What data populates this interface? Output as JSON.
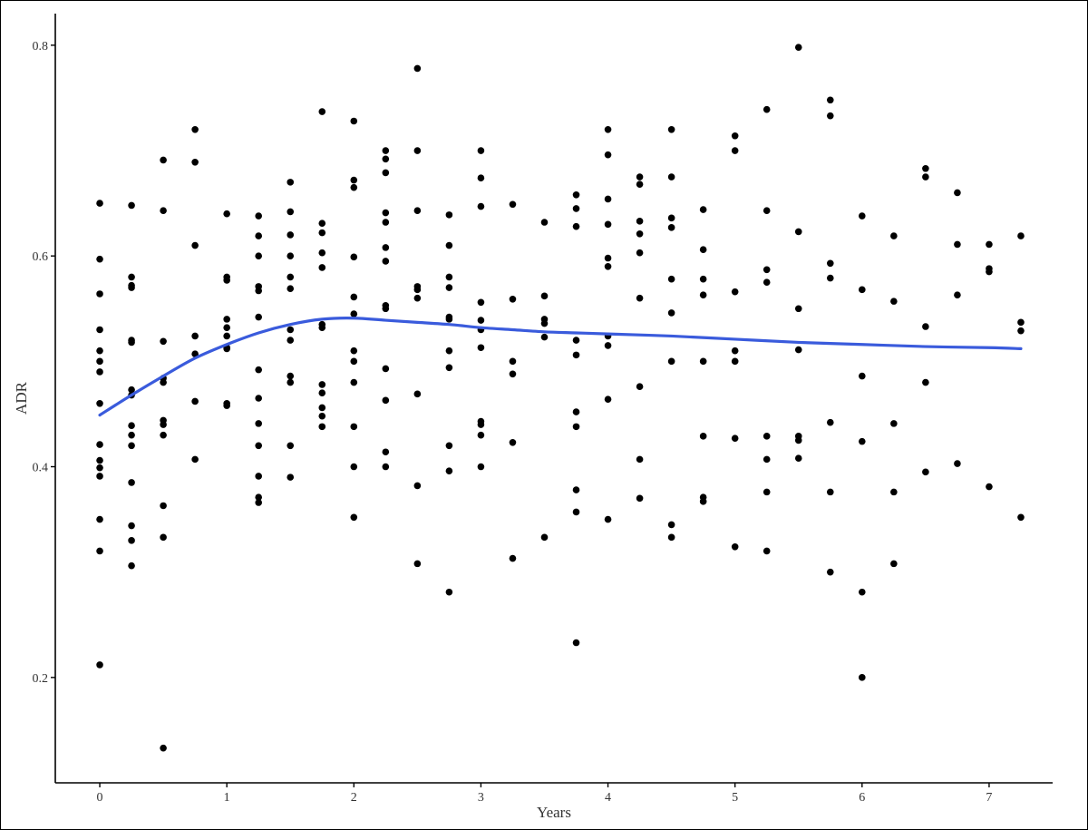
{
  "chart_data": {
    "type": "scatter",
    "title": "",
    "xlabel": "Years",
    "ylabel": "ADR",
    "xlim": [
      -0.35,
      7.5
    ],
    "ylim": [
      0.1,
      0.83
    ],
    "x_ticks": [
      0,
      1,
      2,
      3,
      4,
      5,
      6,
      7
    ],
    "y_ticks": [
      0.2,
      0.4,
      0.6,
      0.8
    ],
    "grid": false,
    "legend": "none",
    "point_color": "#000000",
    "smooth_color": "#3a5bdc",
    "points": [
      {
        "x": 0,
        "y": 0.65
      },
      {
        "x": 0,
        "y": 0.597
      },
      {
        "x": 0,
        "y": 0.564
      },
      {
        "x": 0,
        "y": 0.53
      },
      {
        "x": 0,
        "y": 0.51
      },
      {
        "x": 0,
        "y": 0.5
      },
      {
        "x": 0,
        "y": 0.49
      },
      {
        "x": 0,
        "y": 0.46
      },
      {
        "x": 0,
        "y": 0.421
      },
      {
        "x": 0,
        "y": 0.406
      },
      {
        "x": 0,
        "y": 0.399
      },
      {
        "x": 0,
        "y": 0.391
      },
      {
        "x": 0,
        "y": 0.35
      },
      {
        "x": 0,
        "y": 0.32
      },
      {
        "x": 0,
        "y": 0.212
      },
      {
        "x": 0.25,
        "y": 0.648
      },
      {
        "x": 0.25,
        "y": 0.58
      },
      {
        "x": 0.25,
        "y": 0.572
      },
      {
        "x": 0.25,
        "y": 0.57
      },
      {
        "x": 0.25,
        "y": 0.52
      },
      {
        "x": 0.25,
        "y": 0.518
      },
      {
        "x": 0.25,
        "y": 0.473
      },
      {
        "x": 0.25,
        "y": 0.468
      },
      {
        "x": 0.25,
        "y": 0.439
      },
      {
        "x": 0.25,
        "y": 0.43
      },
      {
        "x": 0.25,
        "y": 0.42
      },
      {
        "x": 0.25,
        "y": 0.385
      },
      {
        "x": 0.25,
        "y": 0.344
      },
      {
        "x": 0.25,
        "y": 0.33
      },
      {
        "x": 0.25,
        "y": 0.306
      },
      {
        "x": 0.5,
        "y": 0.691
      },
      {
        "x": 0.5,
        "y": 0.643
      },
      {
        "x": 0.5,
        "y": 0.519
      },
      {
        "x": 0.5,
        "y": 0.484
      },
      {
        "x": 0.5,
        "y": 0.48
      },
      {
        "x": 0.5,
        "y": 0.444
      },
      {
        "x": 0.5,
        "y": 0.44
      },
      {
        "x": 0.5,
        "y": 0.43
      },
      {
        "x": 0.5,
        "y": 0.363
      },
      {
        "x": 0.5,
        "y": 0.333
      },
      {
        "x": 0.5,
        "y": 0.133
      },
      {
        "x": 0.75,
        "y": 0.72
      },
      {
        "x": 0.75,
        "y": 0.689
      },
      {
        "x": 0.75,
        "y": 0.61
      },
      {
        "x": 0.75,
        "y": 0.524
      },
      {
        "x": 0.75,
        "y": 0.507
      },
      {
        "x": 0.75,
        "y": 0.462
      },
      {
        "x": 0.75,
        "y": 0.407
      },
      {
        "x": 1,
        "y": 0.64
      },
      {
        "x": 1,
        "y": 0.58
      },
      {
        "x": 1,
        "y": 0.577
      },
      {
        "x": 1,
        "y": 0.54
      },
      {
        "x": 1,
        "y": 0.532
      },
      {
        "x": 1,
        "y": 0.524
      },
      {
        "x": 1,
        "y": 0.513
      },
      {
        "x": 1,
        "y": 0.512
      },
      {
        "x": 1,
        "y": 0.46
      },
      {
        "x": 1,
        "y": 0.458
      },
      {
        "x": 1.25,
        "y": 0.638
      },
      {
        "x": 1.25,
        "y": 0.619
      },
      {
        "x": 1.25,
        "y": 0.6
      },
      {
        "x": 1.25,
        "y": 0.571
      },
      {
        "x": 1.25,
        "y": 0.567
      },
      {
        "x": 1.25,
        "y": 0.542
      },
      {
        "x": 1.25,
        "y": 0.492
      },
      {
        "x": 1.25,
        "y": 0.465
      },
      {
        "x": 1.25,
        "y": 0.441
      },
      {
        "x": 1.25,
        "y": 0.42
      },
      {
        "x": 1.25,
        "y": 0.391
      },
      {
        "x": 1.25,
        "y": 0.371
      },
      {
        "x": 1.25,
        "y": 0.366
      },
      {
        "x": 1.5,
        "y": 0.67
      },
      {
        "x": 1.5,
        "y": 0.642
      },
      {
        "x": 1.5,
        "y": 0.62
      },
      {
        "x": 1.5,
        "y": 0.6
      },
      {
        "x": 1.5,
        "y": 0.58
      },
      {
        "x": 1.5,
        "y": 0.569
      },
      {
        "x": 1.5,
        "y": 0.53
      },
      {
        "x": 1.5,
        "y": 0.52
      },
      {
        "x": 1.5,
        "y": 0.486
      },
      {
        "x": 1.5,
        "y": 0.48
      },
      {
        "x": 1.5,
        "y": 0.42
      },
      {
        "x": 1.5,
        "y": 0.39
      },
      {
        "x": 1.75,
        "y": 0.737
      },
      {
        "x": 1.75,
        "y": 0.631
      },
      {
        "x": 1.75,
        "y": 0.622
      },
      {
        "x": 1.75,
        "y": 0.603
      },
      {
        "x": 1.75,
        "y": 0.589
      },
      {
        "x": 1.75,
        "y": 0.535
      },
      {
        "x": 1.75,
        "y": 0.532
      },
      {
        "x": 1.75,
        "y": 0.478
      },
      {
        "x": 1.75,
        "y": 0.47
      },
      {
        "x": 1.75,
        "y": 0.456
      },
      {
        "x": 1.75,
        "y": 0.448
      },
      {
        "x": 1.75,
        "y": 0.438
      },
      {
        "x": 2,
        "y": 0.728
      },
      {
        "x": 2,
        "y": 0.672
      },
      {
        "x": 2,
        "y": 0.665
      },
      {
        "x": 2,
        "y": 0.599
      },
      {
        "x": 2,
        "y": 0.561
      },
      {
        "x": 2,
        "y": 0.545
      },
      {
        "x": 2,
        "y": 0.51
      },
      {
        "x": 2,
        "y": 0.5
      },
      {
        "x": 2,
        "y": 0.48
      },
      {
        "x": 2,
        "y": 0.438
      },
      {
        "x": 2,
        "y": 0.4
      },
      {
        "x": 2,
        "y": 0.352
      },
      {
        "x": 2.25,
        "y": 0.7
      },
      {
        "x": 2.25,
        "y": 0.692
      },
      {
        "x": 2.25,
        "y": 0.679
      },
      {
        "x": 2.25,
        "y": 0.641
      },
      {
        "x": 2.25,
        "y": 0.632
      },
      {
        "x": 2.25,
        "y": 0.608
      },
      {
        "x": 2.25,
        "y": 0.595
      },
      {
        "x": 2.25,
        "y": 0.553
      },
      {
        "x": 2.25,
        "y": 0.55
      },
      {
        "x": 2.25,
        "y": 0.493
      },
      {
        "x": 2.25,
        "y": 0.463
      },
      {
        "x": 2.25,
        "y": 0.414
      },
      {
        "x": 2.25,
        "y": 0.4
      },
      {
        "x": 2.5,
        "y": 0.778
      },
      {
        "x": 2.5,
        "y": 0.7
      },
      {
        "x": 2.5,
        "y": 0.643
      },
      {
        "x": 2.5,
        "y": 0.571
      },
      {
        "x": 2.5,
        "y": 0.568
      },
      {
        "x": 2.5,
        "y": 0.56
      },
      {
        "x": 2.5,
        "y": 0.469
      },
      {
        "x": 2.5,
        "y": 0.382
      },
      {
        "x": 2.5,
        "y": 0.308
      },
      {
        "x": 2.75,
        "y": 0.639
      },
      {
        "x": 2.75,
        "y": 0.61
      },
      {
        "x": 2.75,
        "y": 0.58
      },
      {
        "x": 2.75,
        "y": 0.57
      },
      {
        "x": 2.75,
        "y": 0.542
      },
      {
        "x": 2.75,
        "y": 0.54
      },
      {
        "x": 2.75,
        "y": 0.51
      },
      {
        "x": 2.75,
        "y": 0.494
      },
      {
        "x": 2.75,
        "y": 0.42
      },
      {
        "x": 2.75,
        "y": 0.396
      },
      {
        "x": 2.75,
        "y": 0.281
      },
      {
        "x": 3,
        "y": 0.7
      },
      {
        "x": 3,
        "y": 0.674
      },
      {
        "x": 3,
        "y": 0.647
      },
      {
        "x": 3,
        "y": 0.556
      },
      {
        "x": 3,
        "y": 0.539
      },
      {
        "x": 3,
        "y": 0.53
      },
      {
        "x": 3,
        "y": 0.513
      },
      {
        "x": 3,
        "y": 0.443
      },
      {
        "x": 3,
        "y": 0.44
      },
      {
        "x": 3,
        "y": 0.43
      },
      {
        "x": 3,
        "y": 0.4
      },
      {
        "x": 3.25,
        "y": 0.649
      },
      {
        "x": 3.25,
        "y": 0.559
      },
      {
        "x": 3.25,
        "y": 0.5
      },
      {
        "x": 3.25,
        "y": 0.488
      },
      {
        "x": 3.25,
        "y": 0.423
      },
      {
        "x": 3.25,
        "y": 0.313
      },
      {
        "x": 3.5,
        "y": 0.632
      },
      {
        "x": 3.5,
        "y": 0.562
      },
      {
        "x": 3.5,
        "y": 0.54
      },
      {
        "x": 3.5,
        "y": 0.536
      },
      {
        "x": 3.5,
        "y": 0.523
      },
      {
        "x": 3.5,
        "y": 0.333
      },
      {
        "x": 3.75,
        "y": 0.658
      },
      {
        "x": 3.75,
        "y": 0.645
      },
      {
        "x": 3.75,
        "y": 0.628
      },
      {
        "x": 3.75,
        "y": 0.52
      },
      {
        "x": 3.75,
        "y": 0.506
      },
      {
        "x": 3.75,
        "y": 0.452
      },
      {
        "x": 3.75,
        "y": 0.438
      },
      {
        "x": 3.75,
        "y": 0.378
      },
      {
        "x": 3.75,
        "y": 0.357
      },
      {
        "x": 3.75,
        "y": 0.233
      },
      {
        "x": 4,
        "y": 0.72
      },
      {
        "x": 4,
        "y": 0.696
      },
      {
        "x": 4,
        "y": 0.654
      },
      {
        "x": 4,
        "y": 0.63
      },
      {
        "x": 4,
        "y": 0.598
      },
      {
        "x": 4,
        "y": 0.59
      },
      {
        "x": 4,
        "y": 0.524
      },
      {
        "x": 4,
        "y": 0.515
      },
      {
        "x": 4,
        "y": 0.464
      },
      {
        "x": 4,
        "y": 0.35
      },
      {
        "x": 4.25,
        "y": 0.675
      },
      {
        "x": 4.25,
        "y": 0.668
      },
      {
        "x": 4.25,
        "y": 0.633
      },
      {
        "x": 4.25,
        "y": 0.621
      },
      {
        "x": 4.25,
        "y": 0.603
      },
      {
        "x": 4.25,
        "y": 0.56
      },
      {
        "x": 4.25,
        "y": 0.476
      },
      {
        "x": 4.25,
        "y": 0.407
      },
      {
        "x": 4.25,
        "y": 0.37
      },
      {
        "x": 4.5,
        "y": 0.72
      },
      {
        "x": 4.5,
        "y": 0.675
      },
      {
        "x": 4.5,
        "y": 0.636
      },
      {
        "x": 4.5,
        "y": 0.627
      },
      {
        "x": 4.5,
        "y": 0.578
      },
      {
        "x": 4.5,
        "y": 0.546
      },
      {
        "x": 4.5,
        "y": 0.5
      },
      {
        "x": 4.5,
        "y": 0.345
      },
      {
        "x": 4.5,
        "y": 0.333
      },
      {
        "x": 4.75,
        "y": 0.644
      },
      {
        "x": 4.75,
        "y": 0.606
      },
      {
        "x": 4.75,
        "y": 0.578
      },
      {
        "x": 4.75,
        "y": 0.563
      },
      {
        "x": 4.75,
        "y": 0.5
      },
      {
        "x": 4.75,
        "y": 0.429
      },
      {
        "x": 4.75,
        "y": 0.371
      },
      {
        "x": 4.75,
        "y": 0.367
      },
      {
        "x": 5,
        "y": 0.714
      },
      {
        "x": 5,
        "y": 0.7
      },
      {
        "x": 5,
        "y": 0.566
      },
      {
        "x": 5,
        "y": 0.51
      },
      {
        "x": 5,
        "y": 0.5
      },
      {
        "x": 5,
        "y": 0.427
      },
      {
        "x": 5,
        "y": 0.324
      },
      {
        "x": 5.25,
        "y": 0.739
      },
      {
        "x": 5.25,
        "y": 0.643
      },
      {
        "x": 5.25,
        "y": 0.587
      },
      {
        "x": 5.25,
        "y": 0.575
      },
      {
        "x": 5.25,
        "y": 0.429
      },
      {
        "x": 5.25,
        "y": 0.407
      },
      {
        "x": 5.25,
        "y": 0.376
      },
      {
        "x": 5.25,
        "y": 0.32
      },
      {
        "x": 5.5,
        "y": 0.798
      },
      {
        "x": 5.5,
        "y": 0.623
      },
      {
        "x": 5.5,
        "y": 0.55
      },
      {
        "x": 5.5,
        "y": 0.511
      },
      {
        "x": 5.5,
        "y": 0.429
      },
      {
        "x": 5.5,
        "y": 0.425
      },
      {
        "x": 5.5,
        "y": 0.408
      },
      {
        "x": 5.75,
        "y": 0.748
      },
      {
        "x": 5.75,
        "y": 0.733
      },
      {
        "x": 5.75,
        "y": 0.593
      },
      {
        "x": 5.75,
        "y": 0.579
      },
      {
        "x": 5.75,
        "y": 0.442
      },
      {
        "x": 5.75,
        "y": 0.376
      },
      {
        "x": 5.75,
        "y": 0.3
      },
      {
        "x": 6,
        "y": 0.638
      },
      {
        "x": 6,
        "y": 0.568
      },
      {
        "x": 6,
        "y": 0.486
      },
      {
        "x": 6,
        "y": 0.424
      },
      {
        "x": 6,
        "y": 0.281
      },
      {
        "x": 6,
        "y": 0.2
      },
      {
        "x": 6.25,
        "y": 0.619
      },
      {
        "x": 6.25,
        "y": 0.557
      },
      {
        "x": 6.25,
        "y": 0.441
      },
      {
        "x": 6.25,
        "y": 0.376
      },
      {
        "x": 6.25,
        "y": 0.308
      },
      {
        "x": 6.5,
        "y": 0.683
      },
      {
        "x": 6.5,
        "y": 0.675
      },
      {
        "x": 6.5,
        "y": 0.533
      },
      {
        "x": 6.5,
        "y": 0.48
      },
      {
        "x": 6.5,
        "y": 0.395
      },
      {
        "x": 6.75,
        "y": 0.66
      },
      {
        "x": 6.75,
        "y": 0.611
      },
      {
        "x": 6.75,
        "y": 0.563
      },
      {
        "x": 6.75,
        "y": 0.403
      },
      {
        "x": 7,
        "y": 0.611
      },
      {
        "x": 7,
        "y": 0.588
      },
      {
        "x": 7,
        "y": 0.585
      },
      {
        "x": 7,
        "y": 0.381
      },
      {
        "x": 7.25,
        "y": 0.619
      },
      {
        "x": 7.25,
        "y": 0.537
      },
      {
        "x": 7.25,
        "y": 0.529
      },
      {
        "x": 7.25,
        "y": 0.352
      }
    ],
    "smooth": {
      "x": [
        0,
        0.25,
        0.5,
        0.75,
        1,
        1.25,
        1.5,
        1.75,
        2,
        2.25,
        2.5,
        2.75,
        3,
        3.25,
        3.5,
        3.75,
        4,
        4.5,
        5,
        5.5,
        6,
        6.5,
        7,
        7.25
      ],
      "y": [
        0.449,
        0.468,
        0.486,
        0.503,
        0.516,
        0.527,
        0.535,
        0.54,
        0.541,
        0.539,
        0.537,
        0.535,
        0.532,
        0.53,
        0.528,
        0.527,
        0.526,
        0.524,
        0.521,
        0.518,
        0.516,
        0.514,
        0.513,
        0.512
      ]
    }
  }
}
